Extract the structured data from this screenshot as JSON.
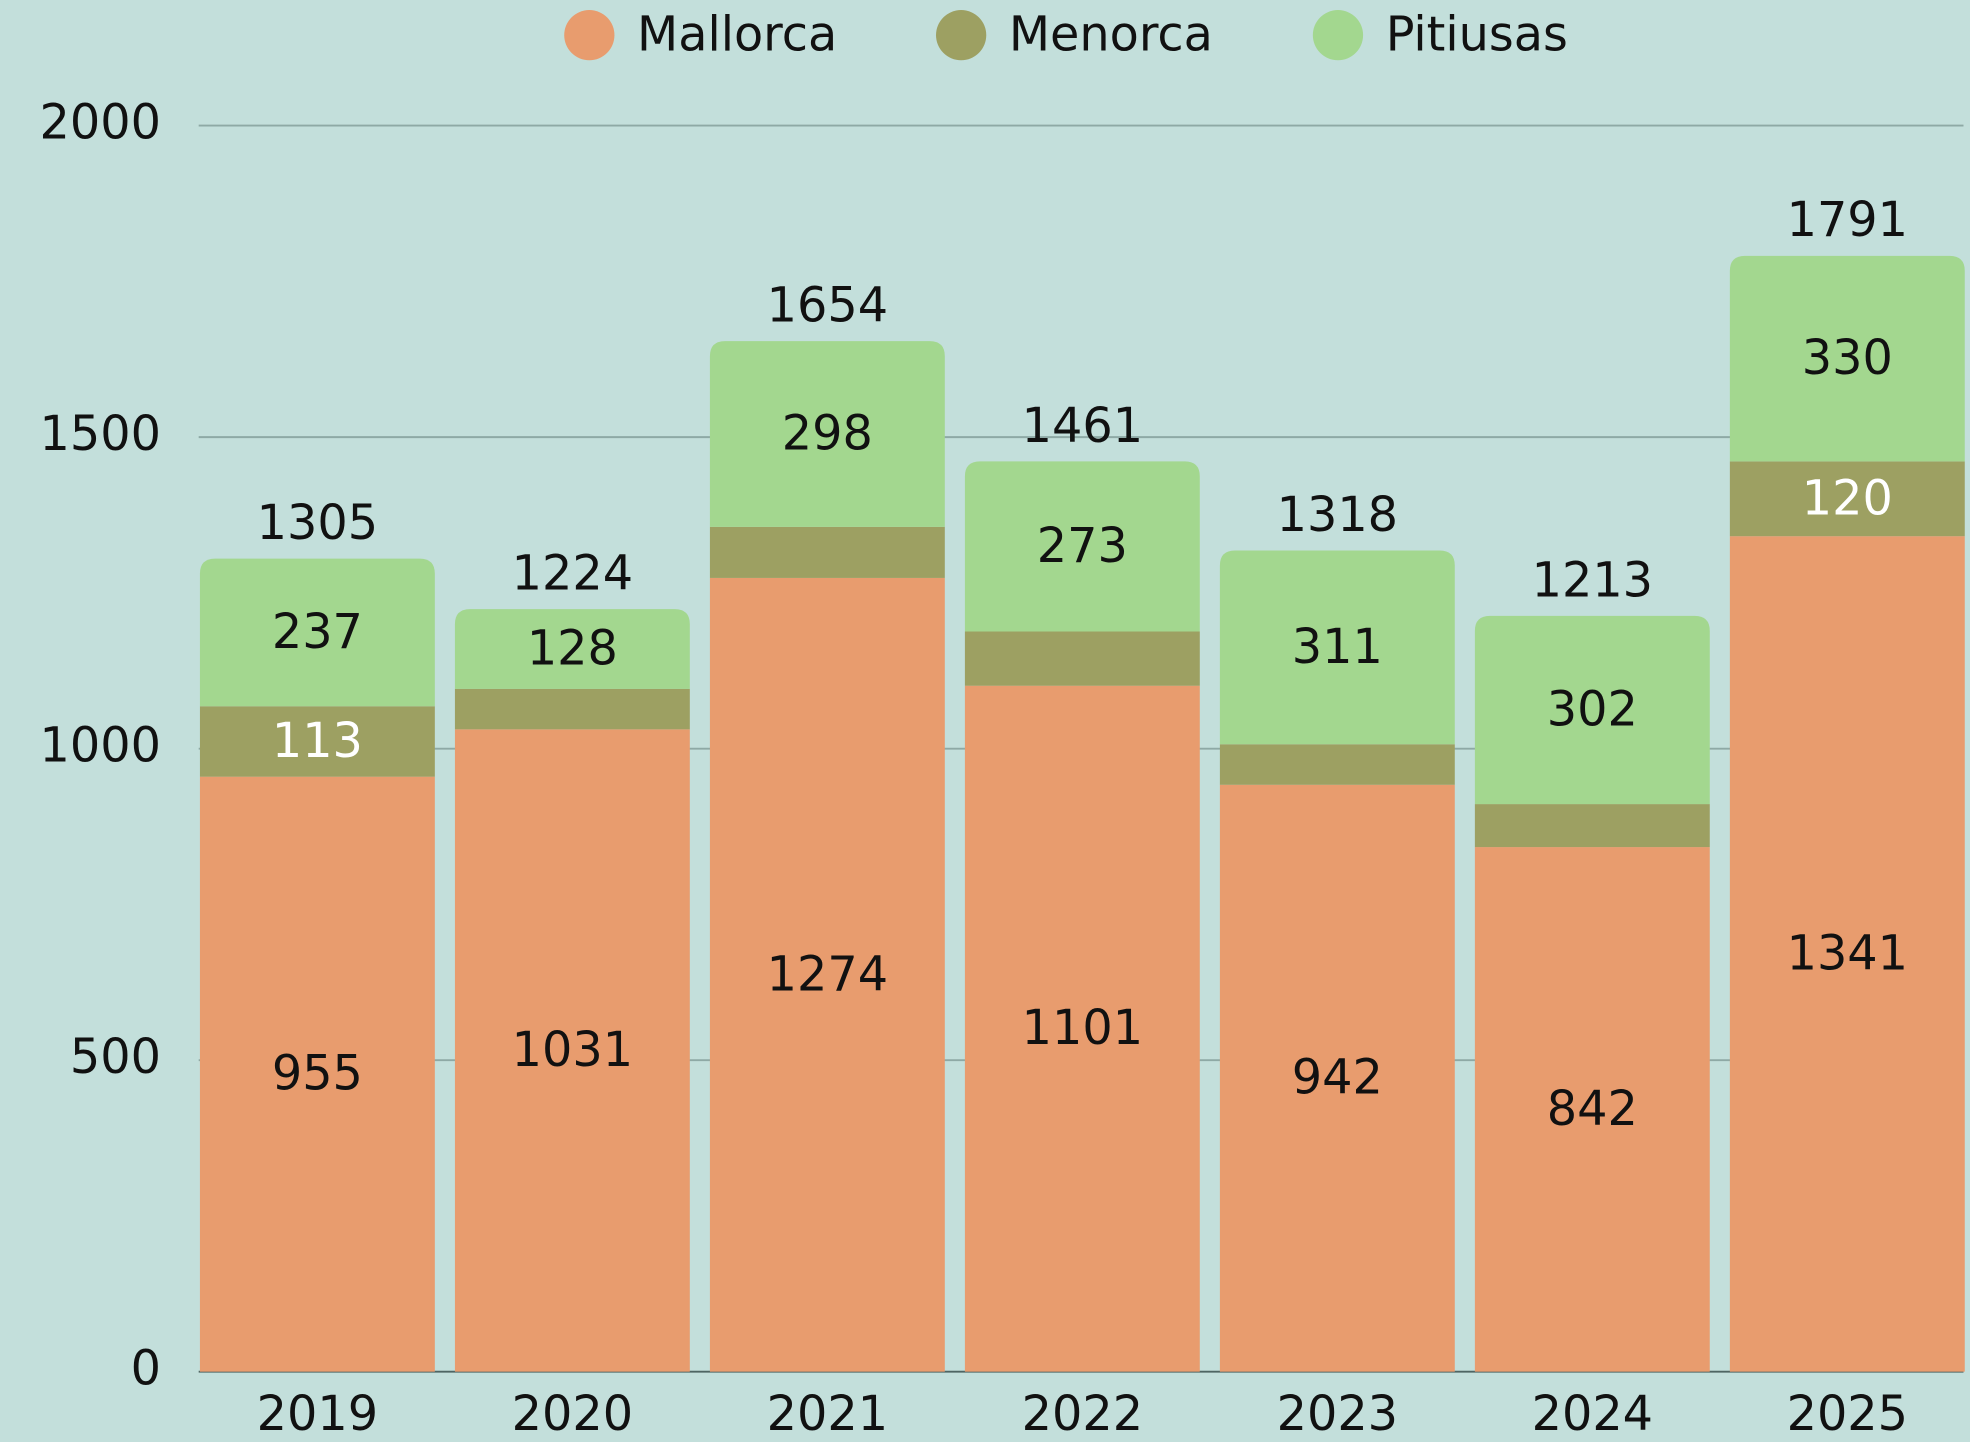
{
  "chart_data": {
    "type": "stacked_bar",
    "categories": [
      "2019",
      "2020",
      "2021",
      "2022",
      "2023",
      "2024",
      "2025"
    ],
    "series": [
      {
        "name": "Mallorca",
        "color": "#e89c6e",
        "label_color": "#111111",
        "values": [
          955,
          1031,
          1274,
          1101,
          942,
          842,
          1341
        ]
      },
      {
        "name": "Menorca",
        "color": "#9da062",
        "label_color": "#ffffff",
        "values": [
          113,
          65,
          82,
          87,
          65,
          69,
          120
        ],
        "value_labels": [
          "113",
          null,
          null,
          null,
          null,
          null,
          "120"
        ]
      },
      {
        "name": "Pitiusas",
        "color": "#a3d78f",
        "label_color": "#111111",
        "values": [
          237,
          128,
          298,
          273,
          311,
          302,
          330
        ]
      }
    ],
    "totals": [
      1305,
      1224,
      1654,
      1461,
      1318,
      1213,
      1791
    ],
    "ylim": [
      0,
      2000
    ],
    "yticks": [
      0,
      500,
      1000,
      1500,
      2000
    ],
    "grid": true,
    "legend": "top"
  }
}
